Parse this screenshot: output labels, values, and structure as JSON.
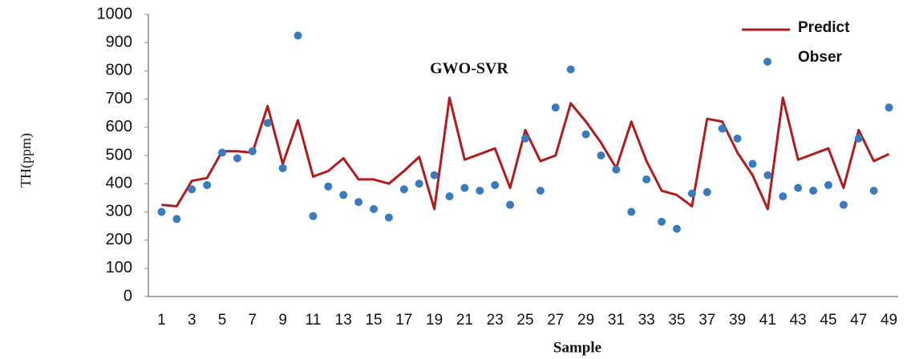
{
  "chart_data": {
    "type": "line_scatter",
    "title": "GWO-SVR",
    "x_label": "Sample",
    "y_label": "TH(ppm)",
    "categories": [
      1,
      null,
      3,
      null,
      5,
      null,
      7,
      null,
      9,
      null,
      11,
      null,
      13,
      null,
      15,
      null,
      17,
      null,
      19,
      null,
      21,
      null,
      23,
      null,
      25,
      null,
      27,
      null,
      29,
      null,
      31,
      null,
      33,
      null,
      35,
      null,
      37,
      null,
      39,
      null,
      41,
      null,
      43,
      null,
      45,
      null,
      47,
      null,
      49
    ],
    "series": [
      {
        "name": "Predict",
        "kind": "line",
        "color": "#b01c1c",
        "values": [
          325,
          320,
          410,
          420,
          515,
          515,
          510,
          675,
          470,
          625,
          425,
          445,
          490,
          415,
          415,
          400,
          445,
          495,
          310,
          705,
          485,
          505,
          525,
          385,
          590,
          480,
          500,
          685,
          620,
          545,
          455,
          620,
          480,
          375,
          360,
          320,
          630,
          620,
          510,
          430,
          310,
          705,
          485,
          505,
          525,
          385,
          590,
          480,
          505
        ]
      },
      {
        "name": "Obser",
        "kind": "scatter",
        "color": "#3a7abf",
        "values": [
          300,
          275,
          380,
          395,
          510,
          490,
          515,
          615,
          455,
          925,
          285,
          390,
          360,
          335,
          310,
          280,
          380,
          400,
          430,
          355,
          385,
          375,
          395,
          325,
          560,
          375,
          670,
          805,
          575,
          500,
          450,
          300,
          415,
          265,
          240,
          365,
          370,
          595,
          560,
          470,
          430,
          355,
          385,
          375,
          395,
          325,
          560,
          375,
          670
        ]
      }
    ],
    "ylim": [
      0,
      1000
    ],
    "yticks": [
      0,
      100,
      200,
      300,
      400,
      500,
      600,
      700,
      800,
      900,
      1000
    ],
    "legend": "top-right"
  }
}
